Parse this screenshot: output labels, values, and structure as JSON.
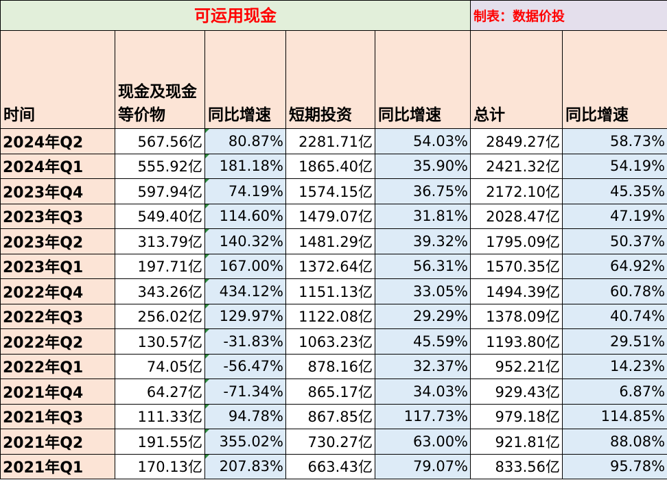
{
  "title": "可运用现金",
  "credit": "制表：数据价投",
  "headers": [
    "时间",
    "现金及现金等价物",
    "同比增速",
    "短期投资",
    "同比增速",
    "总计",
    "同比增速"
  ],
  "rows": [
    {
      "time": "2024年Q2",
      "cash": "567.56亿",
      "cash_yoy": "80.87%",
      "st_inv": "2281.71亿",
      "st_inv_yoy": "54.03%",
      "total": "2849.27亿",
      "total_yoy": "58.73%"
    },
    {
      "time": "2024年Q1",
      "cash": "555.92亿",
      "cash_yoy": "181.18%",
      "st_inv": "1865.40亿",
      "st_inv_yoy": "35.90%",
      "total": "2421.32亿",
      "total_yoy": "54.19%"
    },
    {
      "time": "2023年Q4",
      "cash": "597.94亿",
      "cash_yoy": "74.19%",
      "st_inv": "1574.15亿",
      "st_inv_yoy": "36.75%",
      "total": "2172.10亿",
      "total_yoy": "45.35%"
    },
    {
      "time": "2023年Q3",
      "cash": "549.40亿",
      "cash_yoy": "114.60%",
      "st_inv": "1479.07亿",
      "st_inv_yoy": "31.81%",
      "total": "2028.47亿",
      "total_yoy": "47.19%"
    },
    {
      "time": "2023年Q2",
      "cash": "313.79亿",
      "cash_yoy": "140.32%",
      "st_inv": "1481.29亿",
      "st_inv_yoy": "39.32%",
      "total": "1795.09亿",
      "total_yoy": "50.37%"
    },
    {
      "time": "2023年Q1",
      "cash": "197.71亿",
      "cash_yoy": "167.00%",
      "st_inv": "1372.64亿",
      "st_inv_yoy": "56.31%",
      "total": "1570.35亿",
      "total_yoy": "64.92%"
    },
    {
      "time": "2022年Q4",
      "cash": "343.26亿",
      "cash_yoy": "434.12%",
      "st_inv": "1151.13亿",
      "st_inv_yoy": "33.05%",
      "total": "1494.39亿",
      "total_yoy": "60.78%"
    },
    {
      "time": "2022年Q3",
      "cash": "256.02亿",
      "cash_yoy": "129.97%",
      "st_inv": "1122.08亿",
      "st_inv_yoy": "29.29%",
      "total": "1378.09亿",
      "total_yoy": "40.74%"
    },
    {
      "time": "2022年Q2",
      "cash": "130.57亿",
      "cash_yoy": "-31.83%",
      "st_inv": "1063.23亿",
      "st_inv_yoy": "45.59%",
      "total": "1193.80亿",
      "total_yoy": "29.51%"
    },
    {
      "time": "2022年Q1",
      "cash": "74.05亿",
      "cash_yoy": "-56.47%",
      "st_inv": "878.16亿",
      "st_inv_yoy": "32.37%",
      "total": "952.21亿",
      "total_yoy": "14.23%"
    },
    {
      "time": "2021年Q4",
      "cash": "64.27亿",
      "cash_yoy": "-71.34%",
      "st_inv": "865.17亿",
      "st_inv_yoy": "34.03%",
      "total": "929.43亿",
      "total_yoy": "6.87%"
    },
    {
      "time": "2021年Q3",
      "cash": "111.33亿",
      "cash_yoy": "94.78%",
      "st_inv": "867.85亿",
      "st_inv_yoy": "117.73%",
      "total": "979.18亿",
      "total_yoy": "114.85%"
    },
    {
      "time": "2021年Q2",
      "cash": "191.55亿",
      "cash_yoy": "355.02%",
      "st_inv": "730.27亿",
      "st_inv_yoy": "63.00%",
      "total": "921.81亿",
      "total_yoy": "88.08%"
    },
    {
      "time": "2021年Q1",
      "cash": "170.13亿",
      "cash_yoy": "207.83%",
      "st_inv": "663.43亿",
      "st_inv_yoy": "79.07%",
      "total": "833.56亿",
      "total_yoy": "95.78%"
    }
  ],
  "colors": {
    "title_bg": "#e2efda",
    "credit_bg": "#e4dfec",
    "header_bg": "#fce4d6",
    "growth_bg": "#ddebf7",
    "title_text": "#ff0000",
    "comment_marker": "#2e8b3e"
  }
}
